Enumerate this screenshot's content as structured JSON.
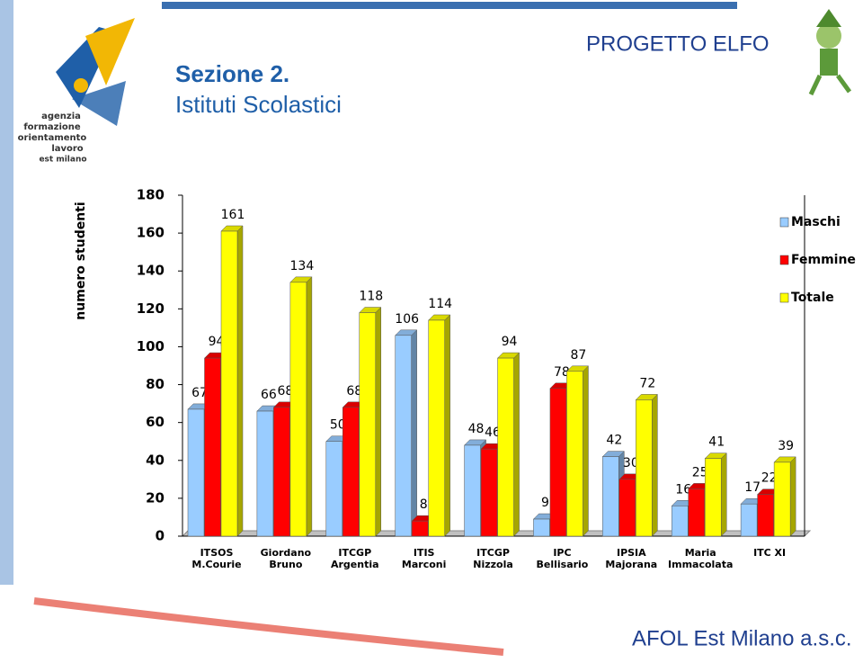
{
  "header": {
    "section": "Sezione 2.",
    "subtitle": "Istituti Scolastici",
    "project": "PROGETTO ELFO",
    "logo_lines": [
      "agenzia",
      "formazione",
      "orientamento",
      "lavoro",
      "est milano"
    ]
  },
  "footer": "AFOL Est Milano a.s.c.",
  "chart_data": {
    "type": "bar3d",
    "y_label": "numero studenti",
    "categories": [
      "ITSOS\nM.Courie",
      "Giordano\nBruno",
      "ITCGP\nArgentia",
      "ITIS\nMarconi",
      "ITCGP\nNizzola",
      "IPC\nBellisario",
      "IPSIA\nMajorana",
      "Maria\nImmacolata",
      "ITC XI"
    ],
    "series": [
      {
        "name": "Maschi",
        "color": "#99ccff",
        "values": [
          67,
          66,
          50,
          106,
          48,
          9,
          42,
          16,
          17
        ]
      },
      {
        "name": "Femmine",
        "color": "#ff0000",
        "values": [
          94,
          68,
          68,
          8,
          46,
          78,
          30,
          25,
          22
        ]
      },
      {
        "name": "Totale",
        "color": "#ffff00",
        "values": [
          161,
          134,
          118,
          114,
          94,
          87,
          72,
          41,
          39
        ]
      }
    ],
    "ylim": [
      0,
      180
    ],
    "yticks": [
      0,
      20,
      40,
      60,
      80,
      100,
      120,
      140,
      160,
      180
    ],
    "grid": false,
    "legend": "right"
  }
}
